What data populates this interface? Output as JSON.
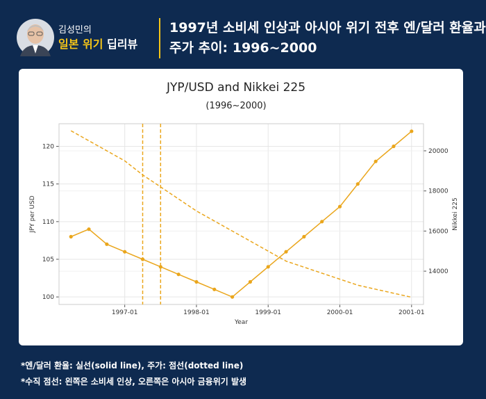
{
  "header": {
    "brand_top": "김성민의",
    "brand_highlight": "일본 위기",
    "brand_rest": "딥리뷰",
    "title_lines": [
      "1997년 소비세 인상과 아시아 위기 전후 엔/달러 환율과",
      "주가 추이: 1996~2000"
    ]
  },
  "chart_data": {
    "type": "line",
    "title": "JYP/USD and Nikkei 225",
    "subtitle": "(1996~2000)",
    "x_label": "Year",
    "y_label": "JPY per USD",
    "y2_label": "Nikkei 225",
    "x": [
      "1996-04",
      "1996-07",
      "1996-10",
      "1997-01",
      "1997-04",
      "1997-07",
      "1997-10",
      "1998-01",
      "1998-04",
      "1998-07",
      "1998-10",
      "1999-01",
      "1999-04",
      "1999-07",
      "1999-10",
      "2000-01",
      "2000-04",
      "2000-07",
      "2000-10",
      "2001-01"
    ],
    "series": [
      {
        "name": "JPY/USD",
        "color": "#eaa61c",
        "style": "solid",
        "markers": true,
        "values": [
          108,
          109,
          107,
          106,
          105,
          104,
          103,
          102,
          101,
          100,
          102,
          104,
          106,
          108,
          110,
          112,
          115,
          118,
          120,
          122
        ]
      },
      {
        "name": "Nikkei 225",
        "color": "#eaa61c",
        "style": "dashed",
        "markers": false,
        "axis": "y2",
        "values": [
          21000,
          20500,
          20000,
          19500,
          18800,
          18200,
          17600,
          17000,
          16500,
          16000,
          15500,
          15000,
          14500,
          14200,
          13900,
          13600,
          13300,
          13100,
          12900,
          12700
        ]
      }
    ],
    "vlines": [
      "1997-04",
      "1997-07"
    ],
    "vline_color": "#eaa61c",
    "xlim": [
      "1996-02",
      "2001-03"
    ],
    "xticks": [
      "1997-01",
      "1998-01",
      "1999-01",
      "2000-01",
      "2001-01"
    ],
    "ylim": [
      99,
      123
    ],
    "yticks": [
      100,
      105,
      110,
      115,
      120
    ],
    "y2lim": [
      12340,
      21350
    ],
    "y2ticks": [
      14000,
      16000,
      18000,
      20000
    ],
    "grid": true,
    "legend": false
  },
  "footnotes": [
    "*엔/달러 환율: 실선(solid line), 주가: 점선(dotted line)",
    "*수직 점선: 왼쪽은 소비세 인상, 오른쪽은 아시아 금융위기 발생"
  ]
}
